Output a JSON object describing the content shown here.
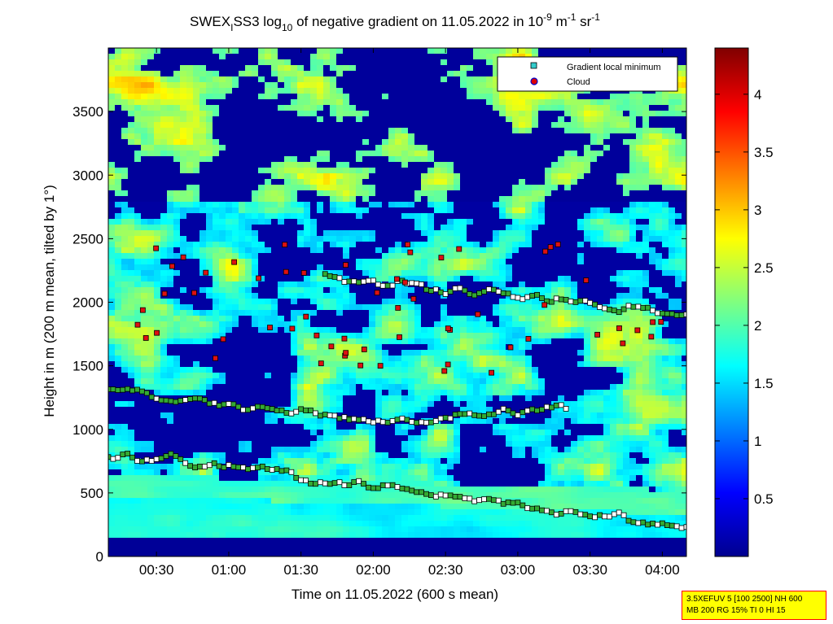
{
  "chart_data": {
    "type": "heatmap",
    "title": {
      "prefix": "SWEX",
      "prefix_sub": "I",
      "mid": "SS3 log",
      "mid_sub": "10",
      "after": " of negative gradient on 11.05.2022 in 10",
      "exp1": "-9",
      "unit1": " m",
      "exp2": "-1",
      "unit2": " sr",
      "exp3": "-1"
    },
    "xlabel": "Time on 11.05.2022 (600 s mean)",
    "ylabel": "Height in m (200 m mean, tilted by 1°)",
    "x_range": [
      "00:10",
      "04:10"
    ],
    "ylim": [
      0,
      4000
    ],
    "x_ticks": [
      "00:30",
      "01:00",
      "01:30",
      "02:00",
      "02:30",
      "03:00",
      "03:30",
      "04:00"
    ],
    "y_ticks": [
      0,
      500,
      1000,
      1500,
      2000,
      2500,
      3000,
      3500
    ],
    "colorbar": {
      "range": [
        0,
        4.4
      ],
      "ticks": [
        0.5,
        1,
        1.5,
        2,
        2.5,
        3,
        3.5,
        4
      ],
      "colormap": "jet"
    },
    "legend": {
      "position": "top-right",
      "items": [
        {
          "label": "Gradient local minimum",
          "marker": "square",
          "color": "#33cccc"
        },
        {
          "label": "Cloud",
          "marker": "circle",
          "color": "#dd0000"
        }
      ]
    },
    "series": [
      {
        "name": "Gradient local minimum",
        "kind": "bands",
        "x": [
          "00:10",
          "00:30",
          "01:00",
          "01:30",
          "02:00",
          "02:30",
          "03:00",
          "03:30",
          "04:10"
        ]
      },
      {
        "name": "Cloud",
        "kind": "points"
      }
    ]
  },
  "info_box": {
    "line1": "3.5XEFUV 5 [100 2500] NH 600",
    "line2": "MB 200 RG 15% TI 0 HI 15"
  }
}
